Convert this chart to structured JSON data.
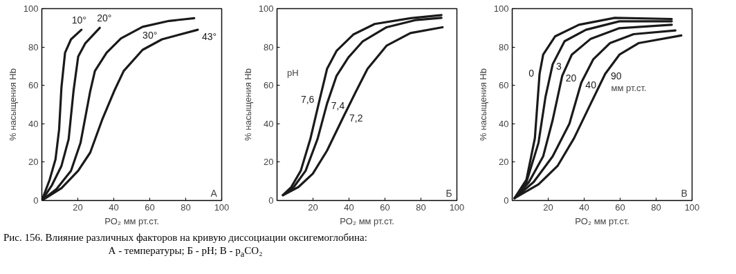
{
  "chart_data": [
    {
      "type": "line",
      "xlabel": "PO₂ мм рт.ст.",
      "ylabel": "% насыщения Hb",
      "xlim": [
        0,
        100
      ],
      "ylim": [
        0,
        100
      ],
      "xticks": [
        20,
        40,
        60,
        80,
        100
      ],
      "yticks": [
        0,
        20,
        40,
        60,
        80,
        100
      ],
      "grid": false,
      "line_style": "solid",
      "annotations": [
        "А"
      ],
      "series": [
        {
          "name": "10°",
          "color": "#1a1a1a",
          "x": [
            0,
            4.3,
            7.6,
            9.6,
            10.9,
            12.9,
            16.2,
            22
          ],
          "values": [
            0,
            10.7,
            21.5,
            37,
            59,
            77,
            84,
            89
          ]
        },
        {
          "name": "20°",
          "color": "#1a1a1a",
          "x": [
            0,
            5.6,
            10.9,
            14.9,
            17.6,
            20.2,
            24.2,
            32.2
          ],
          "values": [
            0,
            8,
            18,
            32,
            57,
            75,
            82,
            90
          ]
        },
        {
          "name": "30°",
          "color": "#1a1a1a",
          "x": [
            0,
            8.2,
            16.2,
            21.5,
            26.9,
            29.5,
            36,
            44,
            56,
            70.7,
            84.7
          ],
          "values": [
            0,
            6,
            15.5,
            30,
            57,
            67.5,
            77,
            84.5,
            90.5,
            93.6,
            95
          ]
        },
        {
          "name": "43°",
          "color": "#1a1a1a",
          "x": [
            0,
            10.9,
            20.2,
            26.9,
            33.5,
            40.2,
            45.5,
            56,
            66.8,
            86.7
          ],
          "values": [
            0,
            6.4,
            15.5,
            25,
            42,
            57,
            67.5,
            78.5,
            84,
            89
          ]
        }
      ]
    },
    {
      "type": "line",
      "xlabel": "PO₂ мм рт.ст.",
      "ylabel": "% насыщения Hb",
      "xlim": [
        0,
        100
      ],
      "ylim": [
        0,
        100
      ],
      "xticks": [
        20,
        40,
        60,
        80,
        100
      ],
      "yticks": [
        0,
        20,
        40,
        60,
        80,
        100
      ],
      "grid": false,
      "line_style": "solid",
      "annotations": [
        "Б",
        "pH"
      ],
      "series": [
        {
          "name": "7,6",
          "color": "#1a1a1a",
          "x": [
            3.3,
            7.9,
            13.2,
            18.5,
            23.8,
            27.8,
            33.1,
            42.4,
            54.3,
            74.2,
            91.4
          ],
          "values": [
            2.8,
            7,
            15.5,
            32,
            53,
            68.6,
            78,
            86.5,
            92,
            95,
            96.6
          ]
        },
        {
          "name": "7,4",
          "color": "#1a1a1a",
          "x": [
            3.3,
            9.3,
            15.9,
            22.5,
            27.8,
            33.1,
            39.7,
            47.7,
            60.9,
            76.8,
            91.4
          ],
          "values": [
            2.8,
            7,
            15.5,
            32,
            50.5,
            65,
            74.6,
            83,
            90.3,
            94,
            95.2
          ]
        },
        {
          "name": "7,2",
          "color": "#1a1a1a",
          "x": [
            3.3,
            11.9,
            19.9,
            27.8,
            37.1,
            43.7,
            50.3,
            60.9,
            74.2,
            92
          ],
          "values": [
            2.8,
            7,
            14,
            26,
            44,
            56.5,
            68.6,
            80.7,
            87.3,
            90.3
          ]
        }
      ]
    },
    {
      "type": "line",
      "xlabel": "PO₂ мм рт.ст.",
      "ylabel": "% насыщения Hb",
      "xlim": [
        0,
        100
      ],
      "ylim": [
        0,
        100
      ],
      "xticks": [
        20,
        40,
        60,
        80,
        100
      ],
      "yticks": [
        0,
        20,
        40,
        60,
        80,
        100
      ],
      "grid": false,
      "line_style": "solid",
      "annotations": [
        "В",
        "мм рт.ст."
      ],
      "series": [
        {
          "name": "0",
          "color": "#1a1a1a",
          "x": [
            1.3,
            7.9,
            12.6,
            15.2,
            17.2,
            23.8,
            37.1,
            57,
            88.7
          ],
          "values": [
            1.2,
            10.8,
            32.5,
            66,
            76,
            85.5,
            91.6,
            95.2,
            94.6
          ]
        },
        {
          "name": "3",
          "color": "#1a1a1a",
          "x": [
            1.3,
            7.9,
            14.6,
            18.5,
            22.5,
            29.1,
            41,
            59.6,
            88.7
          ],
          "values": [
            1.2,
            9.6,
            30,
            54,
            71,
            83,
            89,
            93.4,
            93.4
          ]
        },
        {
          "name": "20",
          "color": "#1a1a1a",
          "x": [
            1.3,
            9.3,
            17.2,
            22.5,
            27.8,
            33.1,
            43.7,
            59.6,
            88.7
          ],
          "values": [
            1.2,
            9.6,
            23,
            42,
            65,
            76,
            84.3,
            89.8,
            91.6
          ]
        },
        {
          "name": "40",
          "color": "#1a1a1a",
          "x": [
            1.3,
            11.9,
            22.5,
            31.8,
            38.4,
            45,
            54.3,
            67.5,
            90.7
          ],
          "values": [
            1.2,
            9.6,
            23,
            40,
            61.4,
            73.5,
            82,
            86.7,
            88.6
          ]
        },
        {
          "name": "90",
          "color": "#1a1a1a",
          "x": [
            1.3,
            14.6,
            25.2,
            34.4,
            43.7,
            51.7,
            59.6,
            70.2,
            94
          ],
          "values": [
            1.2,
            8.4,
            18,
            32.5,
            50.6,
            66,
            76,
            82,
            86
          ]
        }
      ]
    },
    {
      "type": "other",
      "annotations": [
        "Рис. 156. Влияние различных факторов на кривую диссоциации оксигемоглобина:",
        "А - температуры; Б - pH; В - p$_{a}$CO₂"
      ]
    }
  ]
}
